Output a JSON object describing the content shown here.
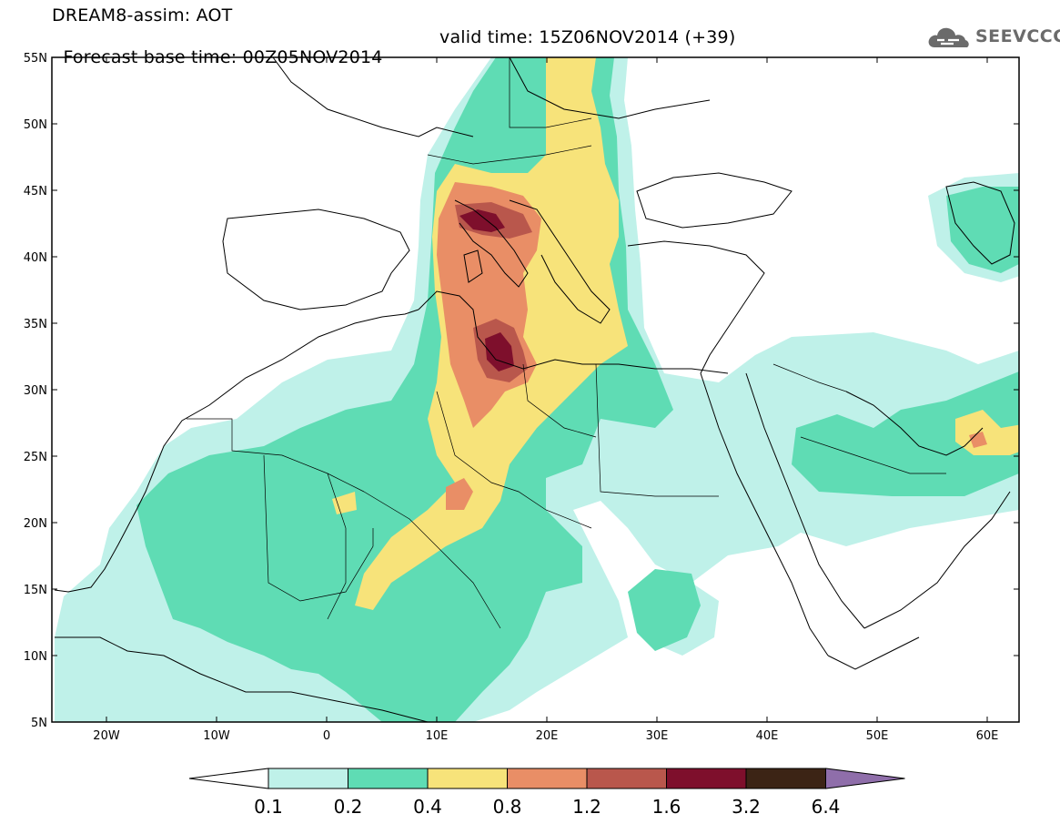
{
  "header": {
    "title": "DREAM8-assim: AOT",
    "base_time_text": "Forecast base time: 00Z05NOV2014",
    "valid_time_text": "valid time: 15Z06NOV2014 (+39)"
  },
  "brand": {
    "name": "SEEVCCC",
    "icon": "cloud-logo-icon"
  },
  "map": {
    "variable": "AOT",
    "lat_labels": [
      "55N",
      "50N",
      "45N",
      "40N",
      "35N",
      "30N",
      "25N",
      "20N",
      "15N",
      "10N",
      "5N"
    ],
    "lon_labels": [
      "20W",
      "10W",
      "0",
      "10E",
      "20E",
      "30E",
      "40E",
      "50E",
      "60E"
    ]
  },
  "legend": {
    "levels": [
      "0.1",
      "0.2",
      "0.4",
      "0.8",
      "1.2",
      "1.6",
      "3.2",
      "6.4"
    ],
    "colors": {
      "under": "#ffffff",
      "bins": [
        "#bff1e9",
        "#5fdcb4",
        "#f7e37a",
        "#e98e66",
        "#b9574c",
        "#7e0f2c",
        "#3c2415"
      ],
      "over": "#8f6eaa"
    }
  },
  "colors": {
    "c1": "#bff1e9",
    "c2": "#5fdcb4",
    "c3": "#f7e37a",
    "c4": "#e98e66",
    "c5": "#b9574c",
    "c6": "#7e0f2c"
  }
}
